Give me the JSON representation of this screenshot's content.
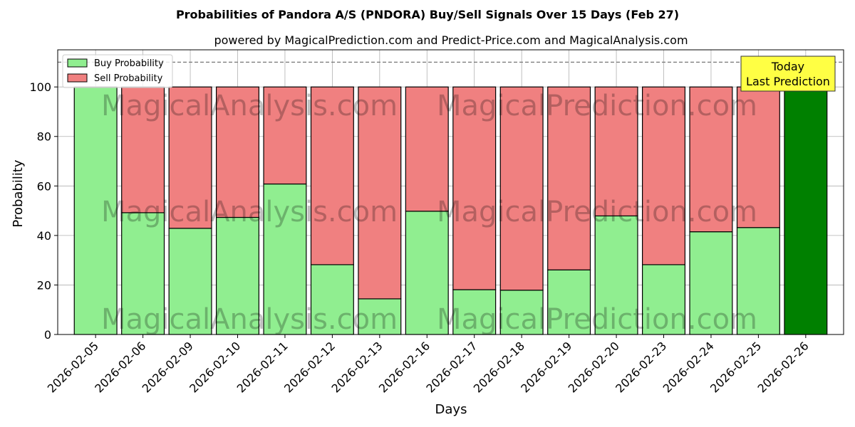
{
  "chart_data": {
    "type": "bar",
    "stacked": true,
    "title": "Probabilities of Pandora A/S (PNDORA) Buy/Sell Signals Over 15 Days (Feb 27)",
    "subtitle": "powered by MagicalPrediction.com and Predict-Price.com and MagicalAnalysis.com",
    "xlabel": "Days",
    "ylabel": "Probability",
    "ylim": [
      0,
      115
    ],
    "yticks": [
      "0",
      "20",
      "40",
      "60",
      "80",
      "100"
    ],
    "grid": true,
    "legend_position": "top-left",
    "reference_line": 110,
    "categories": [
      "2026-02-05",
      "2026-02-06",
      "2026-02-09",
      "2026-02-10",
      "2026-02-11",
      "2026-02-12",
      "2026-02-13",
      "2026-02-16",
      "2026-02-17",
      "2026-02-18",
      "2026-02-19",
      "2026-02-20",
      "2026-02-23",
      "2026-02-24",
      "2026-02-25",
      "2026-02-26"
    ],
    "series": [
      {
        "name": "Buy Probability",
        "color": "#90ee90",
        "values": [
          100,
          49.2,
          42.9,
          47.3,
          60.8,
          28.2,
          14.4,
          49.8,
          18.1,
          17.9,
          26.1,
          47.9,
          28.2,
          41.5,
          43.2,
          100
        ]
      },
      {
        "name": "Sell Probability",
        "color": "#f08080",
        "values": [
          0,
          50.8,
          57.1,
          52.7,
          39.2,
          71.8,
          85.6,
          50.2,
          81.9,
          82.1,
          73.9,
          52.1,
          71.8,
          58.5,
          56.8,
          0
        ]
      }
    ],
    "highlight": {
      "index": 15,
      "color": "#008000",
      "label_line1": "Today",
      "label_line2": "Last Prediction",
      "box_color": "#ffff44"
    },
    "watermarks": [
      "MagicalAnalysis.com",
      "MagicalPrediction.com"
    ]
  }
}
